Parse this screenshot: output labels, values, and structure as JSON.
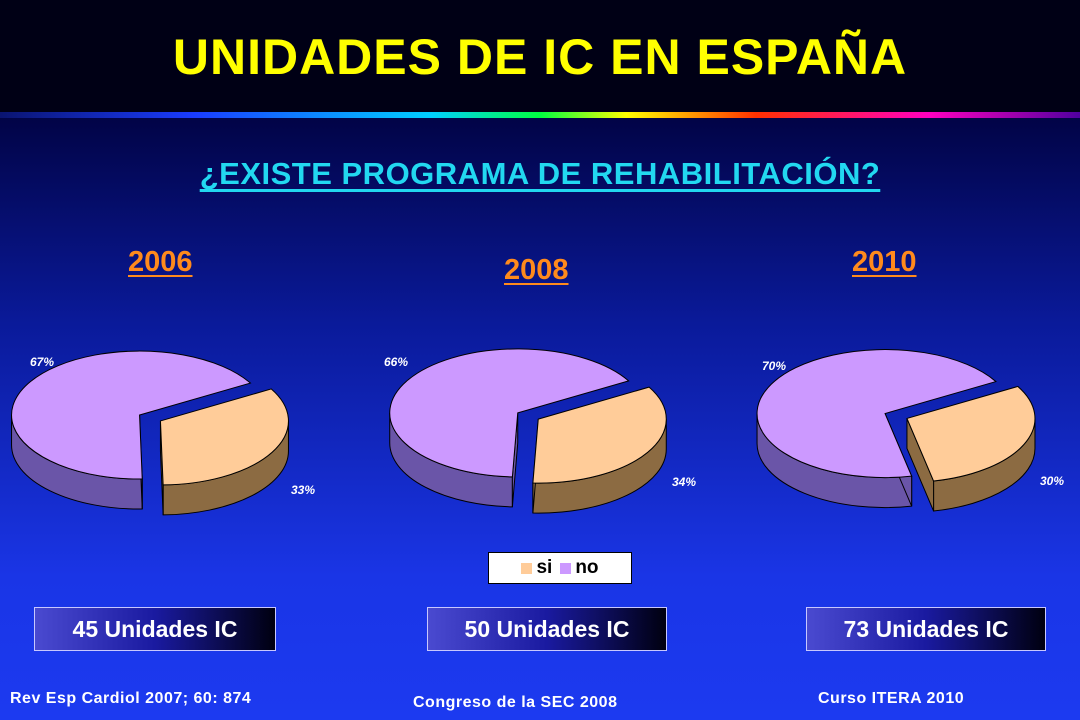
{
  "title": "UNIDADES DE IC EN ESPAÑA",
  "subtitle": "¿EXISTE PROGRAMA DE REHABILITACIÓN?",
  "legend": [
    {
      "label": "si",
      "color": "#ffcc99"
    },
    {
      "label": "no",
      "color": "#cc99ff"
    }
  ],
  "chart_data": [
    {
      "type": "pie",
      "title": "2006",
      "categories": [
        "si",
        "no"
      ],
      "values": [
        33,
        67
      ],
      "labels": [
        "33%",
        "67%"
      ],
      "units": "45 Unidades IC",
      "source": "Rev Esp Cardiol 2007; 60: 874"
    },
    {
      "type": "pie",
      "title": "2008",
      "categories": [
        "si",
        "no"
      ],
      "values": [
        34,
        66
      ],
      "labels": [
        "34%",
        "66%"
      ],
      "units": "50 Unidades IC",
      "source": "Congreso de la SEC 2008"
    },
    {
      "type": "pie",
      "title": "2010",
      "categories": [
        "si",
        "no"
      ],
      "values": [
        30,
        70
      ],
      "labels": [
        "30%",
        "70%"
      ],
      "units": "73 Unidades IC",
      "source": "Curso ITERA 2010"
    }
  ]
}
